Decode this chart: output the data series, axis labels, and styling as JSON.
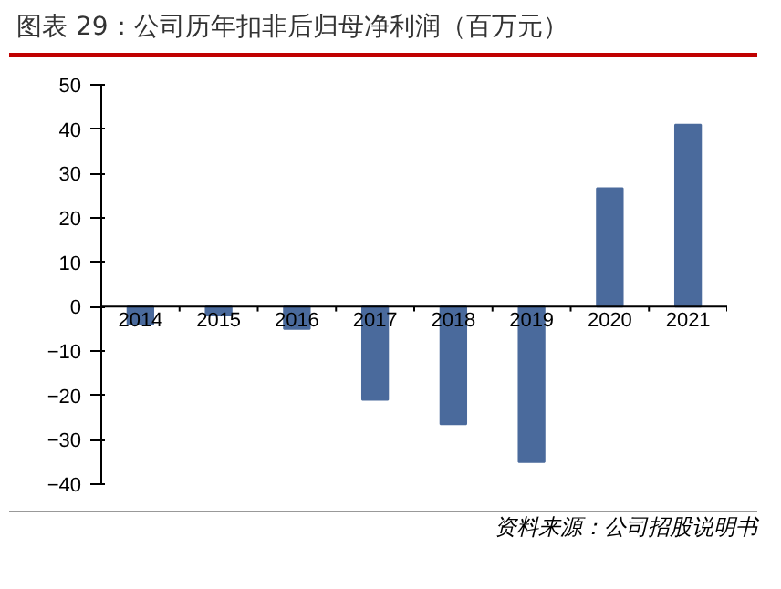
{
  "chart_data": {
    "type": "bar",
    "title": "图表 29：公司历年扣非后归母净利润（百万元）",
    "categories": [
      "2014",
      "2015",
      "2016",
      "2017",
      "2018",
      "2019",
      "2020",
      "2021"
    ],
    "values": [
      -4,
      -2,
      -5,
      -21,
      -26.5,
      -35,
      26.7,
      41
    ],
    "color": "#4a6a9c",
    "ylim": [
      -40,
      50
    ],
    "yticks": [
      -40,
      -30,
      -20,
      -10,
      0,
      10,
      20,
      30,
      40,
      50
    ],
    "grid": false,
    "annotations": [
      "资料来源：公司招股说明书"
    ]
  }
}
